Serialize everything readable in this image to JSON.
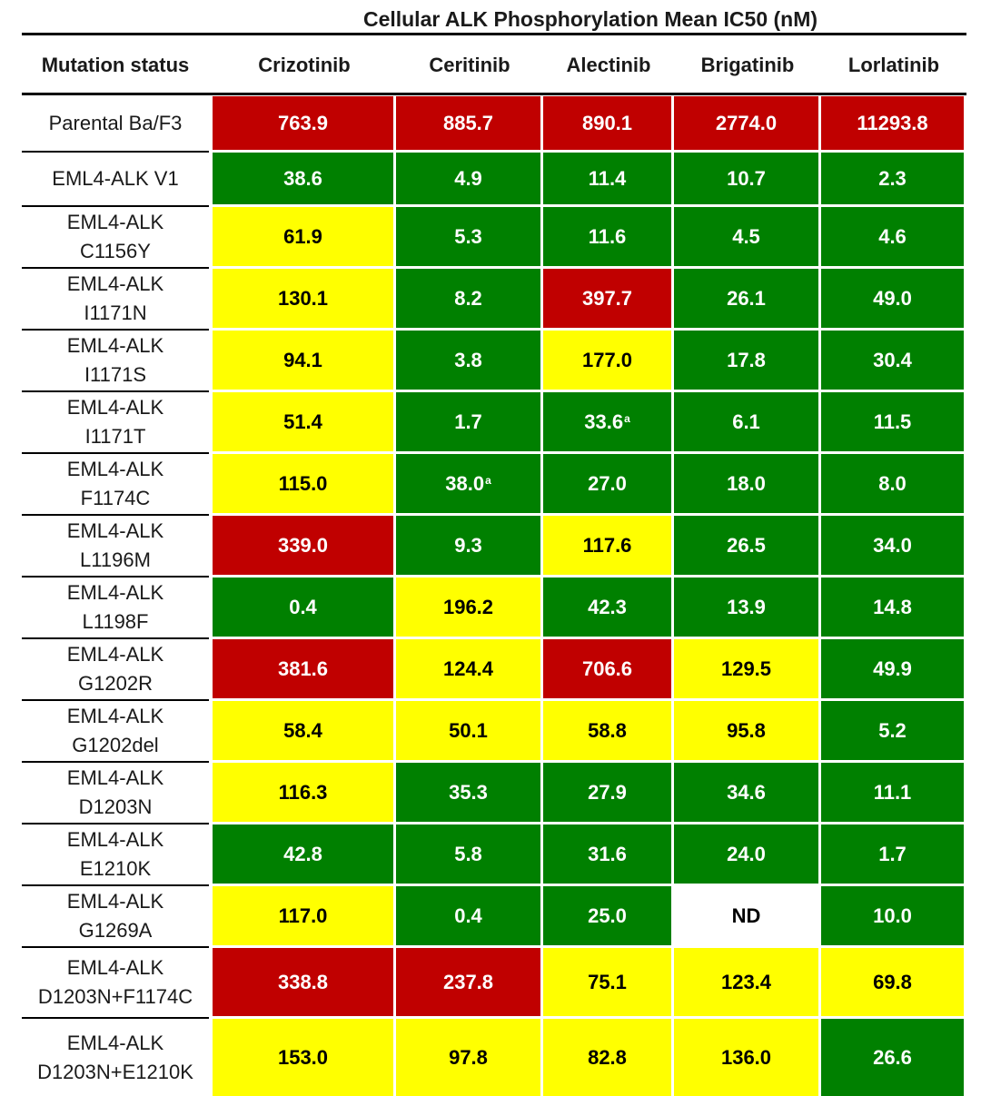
{
  "chart_data": {
    "type": "table",
    "title": "Cellular ALK Phosphorylation Mean IC50 (nM)",
    "row_header": "Mutation status",
    "columns": [
      "Crizotinib",
      "Ceritinib",
      "Alectinib",
      "Brigatinib",
      "Lorlatinib"
    ],
    "colors": {
      "red": "#c00000",
      "green": "#008000",
      "yellow": "#ffff00",
      "white": "#ffffff"
    },
    "rows": [
      {
        "label": "Parental Ba/F3",
        "cells": [
          {
            "v": "763.9",
            "c": "red"
          },
          {
            "v": "885.7",
            "c": "red"
          },
          {
            "v": "890.1",
            "c": "red"
          },
          {
            "v": "2774.0",
            "c": "red"
          },
          {
            "v": "11293.8",
            "c": "red"
          }
        ]
      },
      {
        "label": "EML4-ALK  V1",
        "cells": [
          {
            "v": "38.6",
            "c": "green"
          },
          {
            "v": "4.9",
            "c": "green"
          },
          {
            "v": "11.4",
            "c": "green"
          },
          {
            "v": "10.7",
            "c": "green"
          },
          {
            "v": "2.3",
            "c": "green"
          }
        ]
      },
      {
        "label": "EML4-ALK\nC1156Y",
        "cells": [
          {
            "v": "61.9",
            "c": "yellow"
          },
          {
            "v": "5.3",
            "c": "green"
          },
          {
            "v": "11.6",
            "c": "green"
          },
          {
            "v": "4.5",
            "c": "green"
          },
          {
            "v": "4.6",
            "c": "green"
          }
        ]
      },
      {
        "label": "EML4-ALK\nI1171N",
        "cells": [
          {
            "v": "130.1",
            "c": "yellow"
          },
          {
            "v": "8.2",
            "c": "green"
          },
          {
            "v": "397.7",
            "c": "red"
          },
          {
            "v": "26.1",
            "c": "green"
          },
          {
            "v": "49.0",
            "c": "green"
          }
        ]
      },
      {
        "label": "EML4-ALK\nI1171S",
        "cells": [
          {
            "v": "94.1",
            "c": "yellow"
          },
          {
            "v": "3.8",
            "c": "green"
          },
          {
            "v": "177.0",
            "c": "yellow"
          },
          {
            "v": "17.8",
            "c": "green"
          },
          {
            "v": "30.4",
            "c": "green"
          }
        ]
      },
      {
        "label": "EML4-ALK\nI1171T",
        "cells": [
          {
            "v": "51.4",
            "c": "yellow"
          },
          {
            "v": "1.7",
            "c": "green"
          },
          {
            "v": "33.6",
            "c": "green",
            "sup": "a"
          },
          {
            "v": "6.1",
            "c": "green"
          },
          {
            "v": "11.5",
            "c": "green"
          }
        ]
      },
      {
        "label": "EML4-ALK\nF1174C",
        "cells": [
          {
            "v": "115.0",
            "c": "yellow"
          },
          {
            "v": "38.0",
            "c": "green",
            "sup": "a"
          },
          {
            "v": "27.0",
            "c": "green"
          },
          {
            "v": "18.0",
            "c": "green"
          },
          {
            "v": "8.0",
            "c": "green"
          }
        ]
      },
      {
        "label": "EML4-ALK\nL1196M",
        "cells": [
          {
            "v": "339.0",
            "c": "red"
          },
          {
            "v": "9.3",
            "c": "green"
          },
          {
            "v": "117.6",
            "c": "yellow"
          },
          {
            "v": "26.5",
            "c": "green"
          },
          {
            "v": "34.0",
            "c": "green"
          }
        ]
      },
      {
        "label": "EML4-ALK\nL1198F",
        "cells": [
          {
            "v": "0.4",
            "c": "green"
          },
          {
            "v": "196.2",
            "c": "yellow"
          },
          {
            "v": "42.3",
            "c": "green"
          },
          {
            "v": "13.9",
            "c": "green"
          },
          {
            "v": "14.8",
            "c": "green"
          }
        ]
      },
      {
        "label": "EML4-ALK\nG1202R",
        "cells": [
          {
            "v": "381.6",
            "c": "red"
          },
          {
            "v": "124.4",
            "c": "yellow"
          },
          {
            "v": "706.6",
            "c": "red"
          },
          {
            "v": "129.5",
            "c": "yellow"
          },
          {
            "v": "49.9",
            "c": "green"
          }
        ]
      },
      {
        "label": "EML4-ALK\nG1202del",
        "cells": [
          {
            "v": "58.4",
            "c": "yellow"
          },
          {
            "v": "50.1",
            "c": "yellow"
          },
          {
            "v": "58.8",
            "c": "yellow"
          },
          {
            "v": "95.8",
            "c": "yellow"
          },
          {
            "v": "5.2",
            "c": "green"
          }
        ]
      },
      {
        "label": "EML4-ALK\nD1203N",
        "cells": [
          {
            "v": "116.3",
            "c": "yellow"
          },
          {
            "v": "35.3",
            "c": "green"
          },
          {
            "v": "27.9",
            "c": "green"
          },
          {
            "v": "34.6",
            "c": "green"
          },
          {
            "v": "11.1",
            "c": "green"
          }
        ]
      },
      {
        "label": "EML4-ALK\nE1210K",
        "cells": [
          {
            "v": "42.8",
            "c": "green"
          },
          {
            "v": "5.8",
            "c": "green"
          },
          {
            "v": "31.6",
            "c": "green"
          },
          {
            "v": "24.0",
            "c": "green"
          },
          {
            "v": "1.7",
            "c": "green"
          }
        ]
      },
      {
        "label": "EML4-ALK\nG1269A",
        "cells": [
          {
            "v": "117.0",
            "c": "yellow"
          },
          {
            "v": "0.4",
            "c": "green"
          },
          {
            "v": "25.0",
            "c": "green"
          },
          {
            "v": "ND",
            "c": "white"
          },
          {
            "v": "10.0",
            "c": "green"
          }
        ]
      },
      {
        "label": "EML4-ALK\nD1203N+F1174C",
        "cells": [
          {
            "v": "338.8",
            "c": "red"
          },
          {
            "v": "237.8",
            "c": "red"
          },
          {
            "v": "75.1",
            "c": "yellow"
          },
          {
            "v": "123.4",
            "c": "yellow"
          },
          {
            "v": "69.8",
            "c": "yellow"
          }
        ]
      },
      {
        "label": "EML4-ALK\nD1203N+E1210K",
        "cells": [
          {
            "v": "153.0",
            "c": "yellow"
          },
          {
            "v": "97.8",
            "c": "yellow"
          },
          {
            "v": "82.8",
            "c": "yellow"
          },
          {
            "v": "136.0",
            "c": "yellow"
          },
          {
            "v": "26.6",
            "c": "green"
          }
        ]
      }
    ]
  }
}
